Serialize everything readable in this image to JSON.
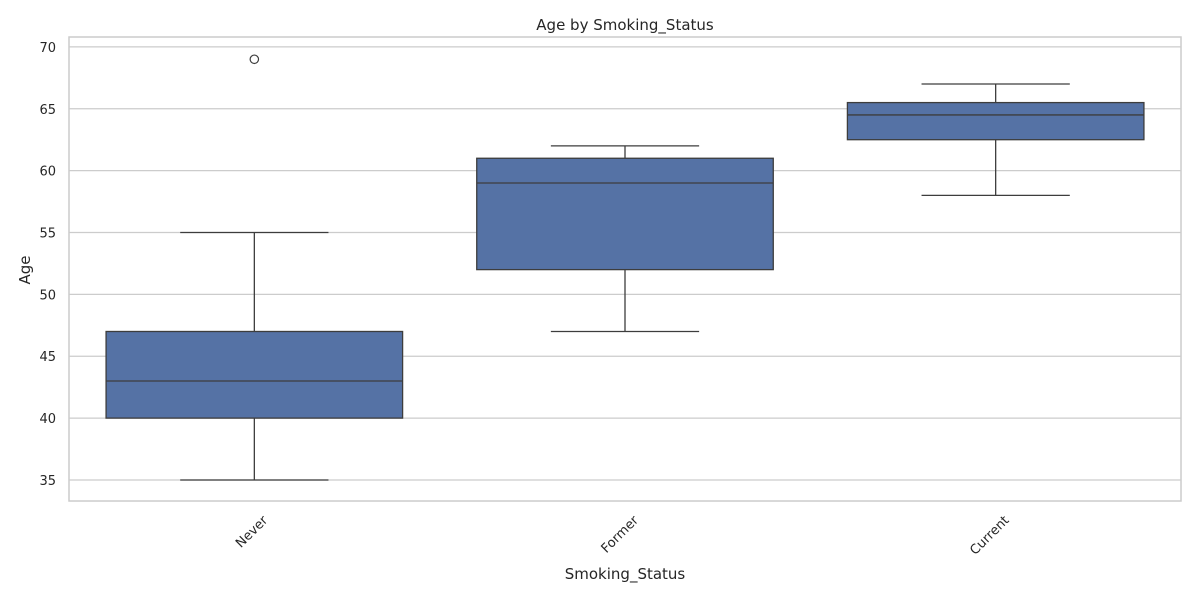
{
  "chart_data": {
    "type": "box",
    "title": "Age by Smoking_Status",
    "xlabel": "Smoking_Status",
    "ylabel": "Age",
    "categories": [
      "Never",
      "Former",
      "Current"
    ],
    "boxes": [
      {
        "category": "Never",
        "whisker_low": 35,
        "q1": 40,
        "median": 43,
        "q3": 47,
        "whisker_high": 55,
        "outliers": [
          69
        ]
      },
      {
        "category": "Former",
        "whisker_low": 47,
        "q1": 52,
        "median": 59,
        "q3": 61,
        "whisker_high": 62,
        "outliers": []
      },
      {
        "category": "Current",
        "whisker_low": 58,
        "q1": 62.5,
        "median": 64.5,
        "q3": 65.5,
        "whisker_high": 67,
        "outliers": []
      }
    ],
    "yticks": [
      35,
      40,
      45,
      50,
      55,
      60,
      65,
      70
    ],
    "ylim": [
      33.3,
      70.8
    ],
    "grid": true,
    "colors": {
      "box_fill": "#5572a5",
      "line": "#3d3d3d",
      "grid": "#cccccc",
      "frame": "#cccccc"
    }
  }
}
